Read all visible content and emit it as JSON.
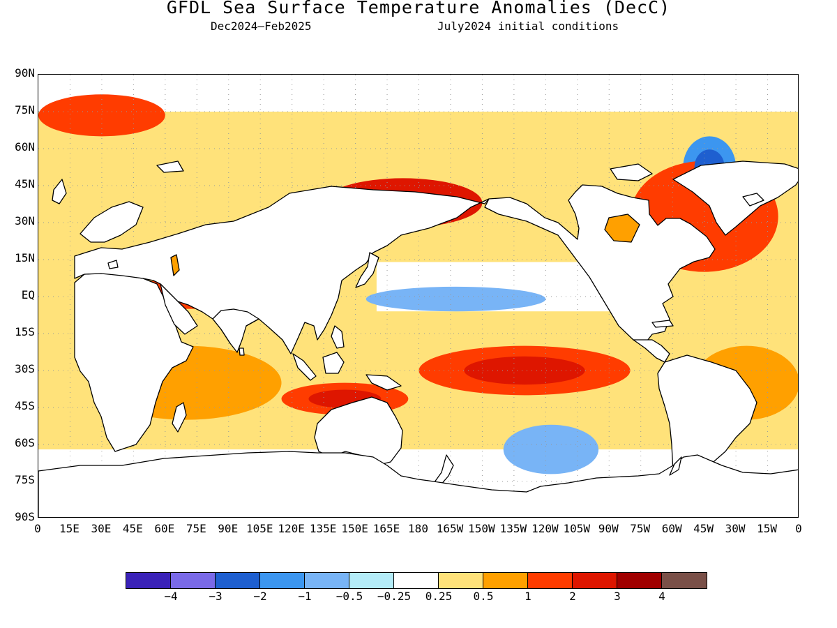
{
  "title": "GFDL Sea Surface Temperature Anomalies (DecC)",
  "subtitle_left": "Dec2024—Feb2025",
  "subtitle_right": "July2024 initial conditions",
  "chart_data": {
    "type": "heatmap",
    "title": "GFDL Sea Surface Temperature Anomalies (DecC)",
    "lat_labels": [
      "90N",
      "75N",
      "60N",
      "45N",
      "30N",
      "15N",
      "EQ",
      "15S",
      "30S",
      "45S",
      "60S",
      "75S",
      "90S"
    ],
    "lon_labels": [
      "0",
      "15E",
      "30E",
      "45E",
      "60E",
      "75E",
      "90E",
      "105E",
      "120E",
      "135E",
      "150E",
      "165E",
      "180",
      "165W",
      "150W",
      "135W",
      "120W",
      "105W",
      "90W",
      "75W",
      "60W",
      "45W",
      "30W",
      "15W",
      "0"
    ],
    "lat_range": [
      -90,
      90
    ],
    "lon_range": [
      0,
      360
    ],
    "grid": true,
    "colorbar": {
      "colors": [
        "#3a22b8",
        "#7a6ae8",
        "#1e5fd0",
        "#3c96f0",
        "#78b4f6",
        "#b4ecf8",
        "#ffffff",
        "#ffe27a",
        "#ffa000",
        "#ff3c00",
        "#de1600",
        "#a00000",
        "#7a5048"
      ],
      "tick_labels": [
        "−4",
        "−3",
        "−2",
        "−1",
        "−0.5",
        "−0.25",
        "0.25",
        "0.5",
        "1",
        "2",
        "3",
        "4"
      ]
    },
    "anomaly_regions": [
      {
        "region": "Equatorial central-east Pacific",
        "lon": [
          155,
          240
        ],
        "lat": [
          -6,
          4
        ],
        "value": -1.0
      },
      {
        "region": "South Pacific near 60S 120W",
        "lon": [
          220,
          265
        ],
        "lat": [
          -72,
          -52
        ],
        "value": -1.0
      },
      {
        "region": "Labrador Sea / south of Greenland",
        "lon": [
          305,
          330
        ],
        "lat": [
          40,
          65
        ],
        "value": -2.0
      },
      {
        "region": "North Pacific Kuroshio extension",
        "lon": [
          135,
          210
        ],
        "lat": [
          28,
          48
        ],
        "value": 2.0
      },
      {
        "region": "Western tropical Indian Ocean",
        "lon": [
          45,
          100
        ],
        "lat": [
          -5,
          8
        ],
        "value": 1.5
      },
      {
        "region": "South Pacific subtropics",
        "lon": [
          180,
          280
        ],
        "lat": [
          -40,
          -20
        ],
        "value": 1.5
      },
      {
        "region": "Tasman Sea / south of Australia",
        "lon": [
          115,
          175
        ],
        "lat": [
          -48,
          -35
        ],
        "value": 1.5
      },
      {
        "region": "North Atlantic",
        "lon": [
          280,
          350
        ],
        "lat": [
          10,
          55
        ],
        "value": 1.0
      },
      {
        "region": "South Atlantic",
        "lon": [
          310,
          360
        ],
        "lat": [
          -50,
          -20
        ],
        "value": 0.75
      },
      {
        "region": "Southern Indian Ocean",
        "lon": [
          25,
          115
        ],
        "lat": [
          -50,
          -20
        ],
        "value": 0.75
      },
      {
        "region": "Arctic Barents Sea",
        "lon": [
          0,
          60
        ],
        "lat": [
          65,
          82
        ],
        "value": 1.0
      }
    ]
  }
}
